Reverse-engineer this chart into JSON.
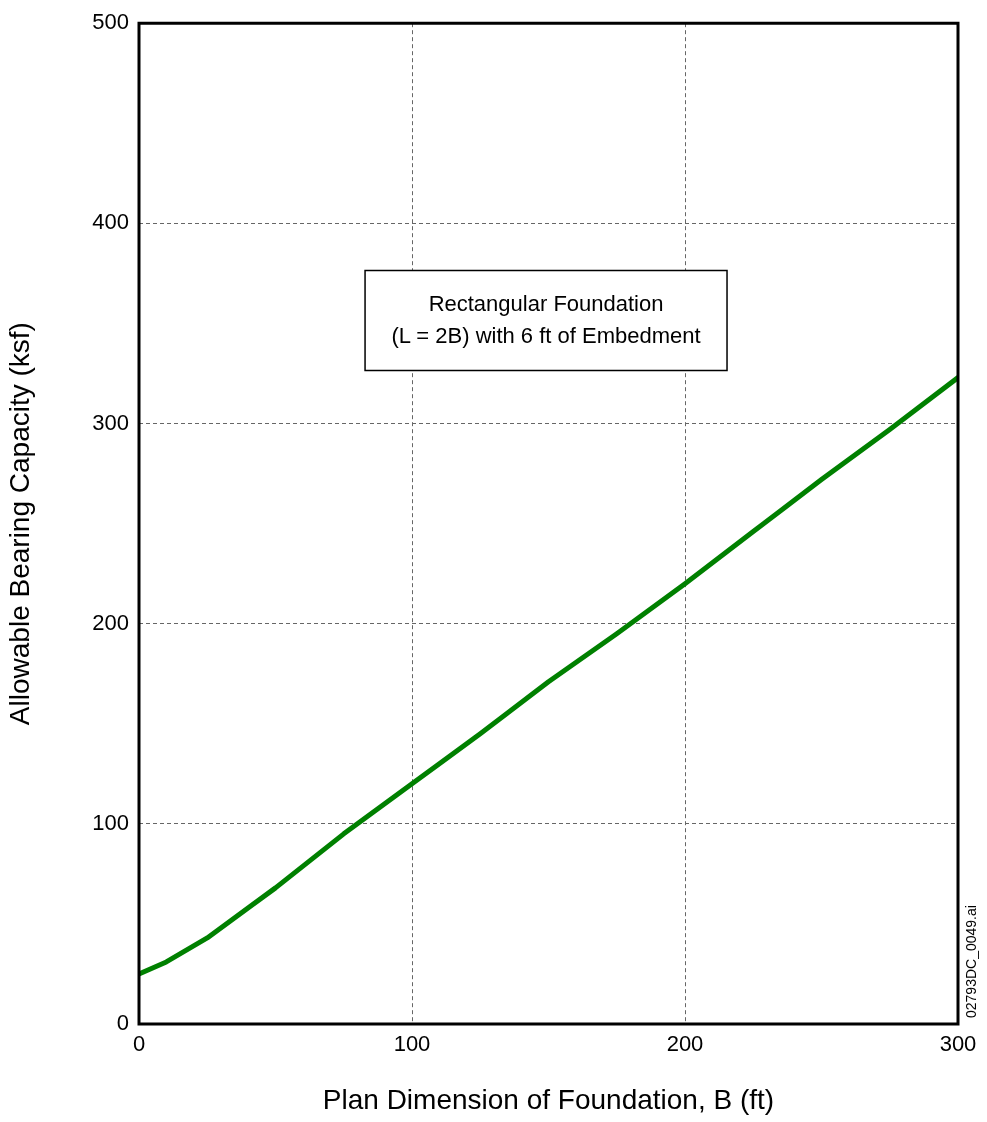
{
  "chart_data": {
    "type": "line",
    "xlabel": "Plan Dimension of Foundation, B (ft)",
    "ylabel": "Allowable Bearing Capacity (ksf)",
    "x": [
      0,
      10,
      25,
      50,
      75,
      100,
      125,
      150,
      175,
      200,
      225,
      250,
      275,
      300
    ],
    "series": [
      {
        "color": "#008000",
        "values": [
          25,
          31,
          43,
          68,
          95,
          120,
          145,
          171,
          195,
          220,
          246,
          272,
          297,
          323
        ]
      }
    ],
    "xlim": [
      0,
      300
    ],
    "xticks": [
      0,
      100,
      200,
      300
    ],
    "ylim": [
      0,
      500
    ],
    "yticks": [
      0,
      100,
      200,
      300,
      400,
      500
    ],
    "grid": true,
    "legend": false,
    "marker": "none",
    "line_style": "solid",
    "annotations": [
      "Rectangular Foundation\n(L = 2B) with 6 ft of Embedment",
      "02793DC_0049.ai"
    ]
  }
}
